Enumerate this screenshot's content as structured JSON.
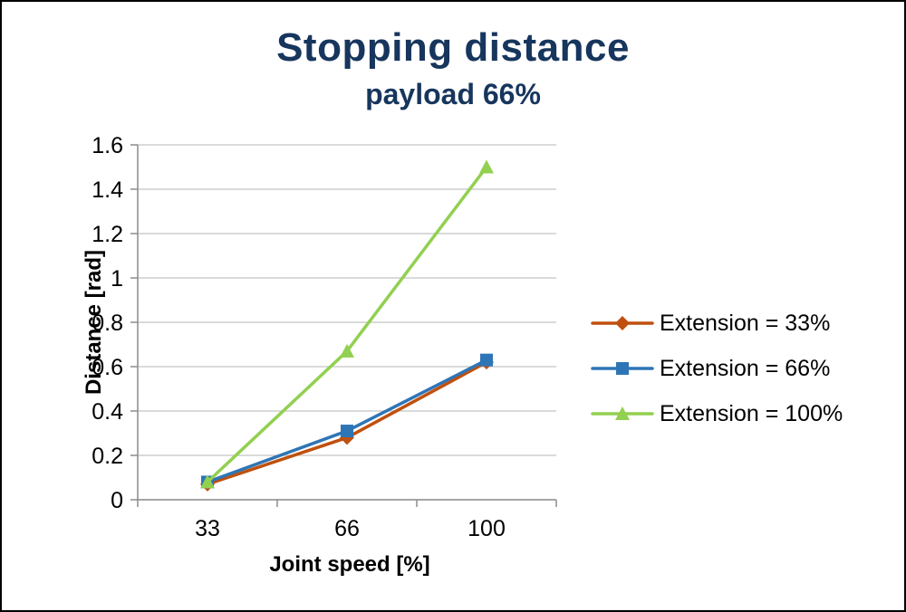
{
  "chart_data": {
    "type": "line",
    "title": "Stopping distance",
    "subtitle": "payload 66%",
    "xlabel": "Joint speed [%]",
    "ylabel": "Distance [rad]",
    "categories": [
      "33",
      "66",
      "100"
    ],
    "series": [
      {
        "name": "Extension = 33%",
        "values": [
          0.07,
          0.28,
          0.62
        ],
        "color": "#C0500E",
        "marker": "diamond"
      },
      {
        "name": "Extension = 66%",
        "values": [
          0.08,
          0.31,
          0.63
        ],
        "color": "#2E75B6",
        "marker": "square"
      },
      {
        "name": "Extension = 100%",
        "values": [
          0.08,
          0.67,
          1.5
        ],
        "color": "#92D050",
        "marker": "triangle"
      }
    ],
    "ylim": [
      0,
      1.6
    ],
    "yticks": [
      0,
      0.2,
      0.4,
      0.6,
      0.8,
      1,
      1.2,
      1.4,
      1.6
    ],
    "ytick_labels": [
      "0",
      "0.2",
      "0.4",
      "0.6",
      "0.8",
      "1",
      "1.2",
      "1.4",
      "1.6"
    ],
    "grid": "horizontal",
    "legend_position": "right"
  },
  "style": {
    "title_color": "#17365D",
    "grid_color": "#C3C3C3",
    "axis_color": "#8C8C8C",
    "axis_text_color": "#000000"
  }
}
